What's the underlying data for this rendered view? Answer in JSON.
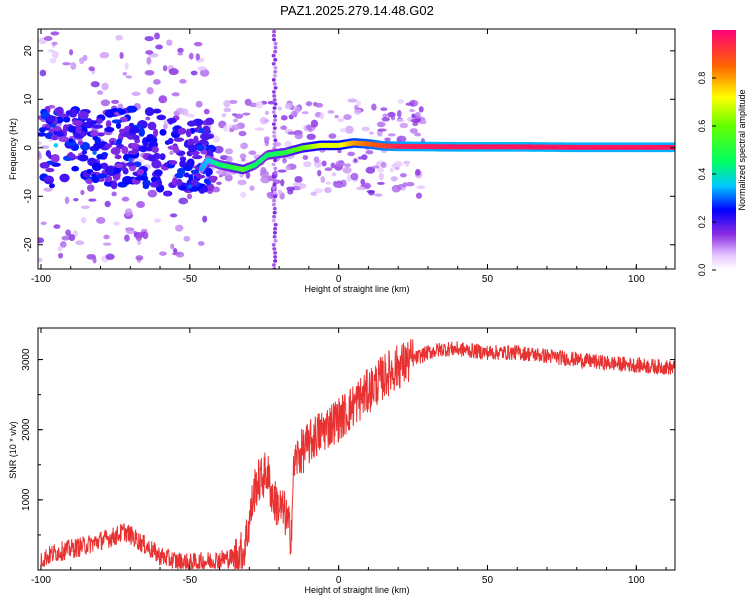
{
  "title": "PAZ1.2025.279.14.48.G02",
  "chart_data": [
    {
      "type": "heatmap",
      "name": "spectrogram",
      "xlabel": "Height of straight line (km)",
      "ylabel": "Frequency (Hz)",
      "xlim": [
        -101,
        113
      ],
      "ylim": [
        -25,
        24.5
      ],
      "xticks": [
        "-100",
        "-50",
        "0",
        "50",
        "100"
      ],
      "yticks": [
        "-20",
        "-10",
        "0",
        "10",
        "20"
      ],
      "colorbar": {
        "label": "Normalized spectral amplitude",
        "range": [
          0,
          1
        ],
        "ticks": [
          "0.0",
          "0.2",
          "0.4",
          "0.6",
          "0.8"
        ]
      },
      "ridge_points": [
        {
          "x": -95,
          "y": 0.5,
          "amp": 0.35
        },
        {
          "x": -90,
          "y": 1.5,
          "amp": 0.25
        },
        {
          "x": -82,
          "y": -1.0,
          "amp": 0.3
        },
        {
          "x": -76,
          "y": 1.0,
          "amp": 0.2
        },
        {
          "x": -70,
          "y": -2.5,
          "amp": 0.3
        },
        {
          "x": -64,
          "y": 1.5,
          "amp": 0.25
        },
        {
          "x": -58,
          "y": -3.5,
          "amp": 0.2
        },
        {
          "x": -50,
          "y": -8.0,
          "amp": 0.3
        },
        {
          "x": -44,
          "y": -2.5,
          "amp": 0.35
        },
        {
          "x": -40,
          "y": -3.5,
          "amp": 0.45
        },
        {
          "x": -36,
          "y": -4.0,
          "amp": 0.5
        },
        {
          "x": -32,
          "y": -4.5,
          "amp": 0.55
        },
        {
          "x": -28,
          "y": -3.5,
          "amp": 0.45
        },
        {
          "x": -24,
          "y": -1.5,
          "amp": 0.45
        },
        {
          "x": -18,
          "y": -1.0,
          "amp": 0.5
        },
        {
          "x": -12,
          "y": 0.0,
          "amp": 0.6
        },
        {
          "x": -6,
          "y": 0.5,
          "amp": 0.7
        },
        {
          "x": 0,
          "y": 0.5,
          "amp": 0.7
        },
        {
          "x": 5,
          "y": 1.0,
          "amp": 0.8
        },
        {
          "x": 10,
          "y": 0.8,
          "amp": 0.85
        },
        {
          "x": 15,
          "y": 0.4,
          "amp": 0.9
        },
        {
          "x": 20,
          "y": 0.3,
          "amp": 0.95
        },
        {
          "x": 40,
          "y": 0.2,
          "amp": 0.97
        },
        {
          "x": 60,
          "y": 0.2,
          "amp": 0.97
        },
        {
          "x": 80,
          "y": 0.1,
          "amp": 0.97
        },
        {
          "x": 100,
          "y": 0.1,
          "amp": 0.97
        },
        {
          "x": 113,
          "y": 0.1,
          "amp": 0.97
        }
      ]
    },
    {
      "type": "line",
      "name": "snr",
      "xlabel": "Height of straight line (km)",
      "ylabel": "SNR (10 * v/v)",
      "xlim": [
        -101,
        113
      ],
      "ylim": [
        0,
        3450
      ],
      "xticks": [
        "-100",
        "-50",
        "0",
        "50",
        "100"
      ],
      "yticks": [
        "1000",
        "2000",
        "3000"
      ],
      "color": "#e83232",
      "series": [
        {
          "name": "SNR",
          "x": [
            -100,
            -95,
            -90,
            -85,
            -80,
            -75,
            -72,
            -70,
            -65,
            -60,
            -55,
            -50,
            -45,
            -40,
            -35,
            -32,
            -30,
            -28,
            -26,
            -24,
            -22,
            -20,
            -18,
            -16,
            -15,
            -14,
            -12,
            -10,
            -8,
            -5,
            -2,
            0,
            3,
            6,
            10,
            15,
            20,
            25,
            30,
            35,
            40,
            50,
            60,
            70,
            80,
            90,
            100,
            113
          ],
          "y": [
            150,
            250,
            300,
            350,
            420,
            480,
            550,
            500,
            350,
            200,
            130,
            100,
            120,
            150,
            180,
            250,
            700,
            1200,
            1300,
            1400,
            1000,
            900,
            800,
            500,
            1500,
            1600,
            1700,
            1800,
            1900,
            2000,
            2100,
            2150,
            2250,
            2400,
            2550,
            2750,
            2900,
            3000,
            3100,
            3150,
            3150,
            3100,
            3100,
            3050,
            3000,
            2950,
            2920,
            2880
          ]
        }
      ]
    }
  ]
}
